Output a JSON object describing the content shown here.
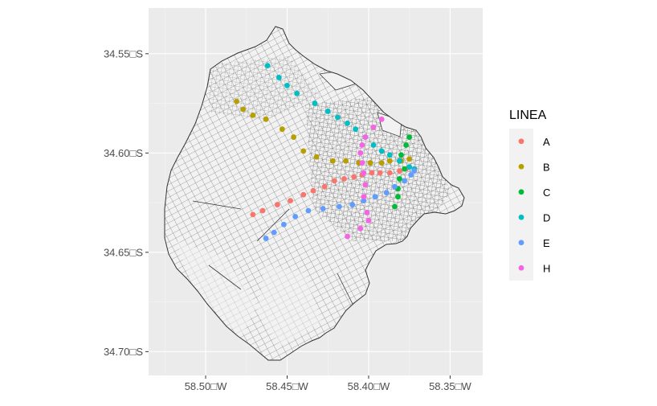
{
  "chart_data": {
    "type": "scatter",
    "title": "",
    "xlabel": "",
    "ylabel": "",
    "xlim": [
      -58.535,
      -58.33
    ],
    "ylim": [
      -34.712,
      -34.527
    ],
    "grid": true,
    "legend_position": "right",
    "x_ticks": [
      {
        "value": -58.5,
        "label": "58.50□W"
      },
      {
        "value": -58.45,
        "label": "58.45□W"
      },
      {
        "value": -58.4,
        "label": "58.40□W"
      },
      {
        "value": -58.35,
        "label": "58.35□W"
      }
    ],
    "y_ticks": [
      {
        "value": -34.55,
        "label": "34.55□S"
      },
      {
        "value": -34.6,
        "label": "34.60□S"
      },
      {
        "value": -34.65,
        "label": "34.65□S"
      },
      {
        "value": -34.7,
        "label": "34.70□S"
      }
    ],
    "legend_title": "LINEA",
    "series": [
      {
        "name": "A",
        "color": "#F8766D",
        "points": [
          [
            -58.471,
            -34.631
          ],
          [
            -58.465,
            -34.629
          ],
          [
            -58.456,
            -34.626
          ],
          [
            -58.448,
            -34.624
          ],
          [
            -58.44,
            -34.621
          ],
          [
            -58.434,
            -34.619
          ],
          [
            -58.427,
            -34.617
          ],
          [
            -58.421,
            -34.614
          ],
          [
            -58.415,
            -34.613
          ],
          [
            -58.409,
            -34.612
          ],
          [
            -58.404,
            -34.611
          ],
          [
            -58.398,
            -34.61
          ],
          [
            -58.393,
            -34.61
          ],
          [
            -58.387,
            -34.61
          ],
          [
            -58.381,
            -34.609
          ],
          [
            -58.377,
            -34.608
          ]
        ]
      },
      {
        "name": "B",
        "color": "#B79F00",
        "points": [
          [
            -58.481,
            -34.574
          ],
          [
            -58.477,
            -34.578
          ],
          [
            -58.471,
            -34.581
          ],
          [
            -58.463,
            -34.583
          ],
          [
            -58.453,
            -34.588
          ],
          [
            -58.446,
            -34.592
          ],
          [
            -58.44,
            -34.599
          ],
          [
            -58.432,
            -34.602
          ],
          [
            -58.422,
            -34.604
          ],
          [
            -58.414,
            -34.604
          ],
          [
            -58.406,
            -34.605
          ],
          [
            -58.399,
            -34.605
          ],
          [
            -58.392,
            -34.605
          ],
          [
            -58.387,
            -34.604
          ],
          [
            -58.38,
            -34.604
          ],
          [
            -58.375,
            -34.603
          ]
        ]
      },
      {
        "name": "C",
        "color": "#00BA38",
        "points": [
          [
            -58.375,
            -34.592
          ],
          [
            -58.377,
            -34.596
          ],
          [
            -58.38,
            -34.601
          ],
          [
            -58.381,
            -34.604
          ],
          [
            -58.378,
            -34.608
          ],
          [
            -58.381,
            -34.613
          ],
          [
            -58.382,
            -34.618
          ],
          [
            -58.382,
            -34.622
          ],
          [
            -58.384,
            -34.627
          ]
        ]
      },
      {
        "name": "D",
        "color": "#00BFC4",
        "points": [
          [
            -58.462,
            -34.556
          ],
          [
            -58.455,
            -34.562
          ],
          [
            -58.45,
            -34.566
          ],
          [
            -58.444,
            -34.57
          ],
          [
            -58.433,
            -34.575
          ],
          [
            -58.425,
            -34.579
          ],
          [
            -58.419,
            -34.582
          ],
          [
            -58.413,
            -34.585
          ],
          [
            -58.408,
            -34.588
          ],
          [
            -58.402,
            -34.592
          ],
          [
            -58.397,
            -34.596
          ],
          [
            -58.392,
            -34.599
          ],
          [
            -58.387,
            -34.601
          ],
          [
            -58.381,
            -34.604
          ],
          [
            -58.375,
            -34.607
          ],
          [
            -58.372,
            -34.608
          ]
        ]
      },
      {
        "name": "E",
        "color": "#619CFF",
        "points": [
          [
            -58.463,
            -34.643
          ],
          [
            -58.458,
            -34.64
          ],
          [
            -58.452,
            -34.636
          ],
          [
            -58.445,
            -34.632
          ],
          [
            -58.437,
            -34.629
          ],
          [
            -58.428,
            -34.628
          ],
          [
            -58.418,
            -34.627
          ],
          [
            -58.41,
            -34.626
          ],
          [
            -58.403,
            -34.624
          ],
          [
            -58.396,
            -34.622
          ],
          [
            -58.389,
            -34.62
          ],
          [
            -58.384,
            -34.617
          ],
          [
            -58.378,
            -34.614
          ],
          [
            -58.374,
            -34.611
          ],
          [
            -58.372,
            -34.609
          ]
        ]
      },
      {
        "name": "H",
        "color": "#F564E3",
        "points": [
          [
            -58.392,
            -34.583
          ],
          [
            -58.397,
            -34.587
          ],
          [
            -58.402,
            -34.592
          ],
          [
            -58.404,
            -34.596
          ],
          [
            -58.405,
            -34.6
          ],
          [
            -58.404,
            -34.605
          ],
          [
            -58.403,
            -34.61
          ],
          [
            -58.402,
            -34.616
          ],
          [
            -58.403,
            -34.622
          ],
          [
            -58.401,
            -34.63
          ],
          [
            -58.4,
            -34.634
          ],
          [
            -58.405,
            -34.638
          ],
          [
            -58.413,
            -34.642
          ]
        ]
      }
    ]
  }
}
